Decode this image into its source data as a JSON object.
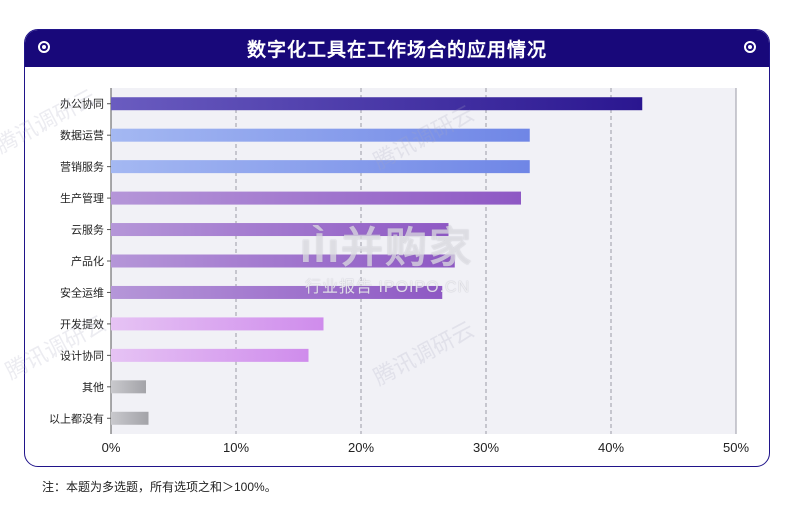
{
  "title": "数字化工具在工作场合的应用情况",
  "footnote": "注：本题为多选题，所有选项之和＞100%。",
  "watermarks": {
    "logo": "ıÌı并购家",
    "sub": "行业报告 IPOIPO.CN",
    "tencent": "腾讯调研云"
  },
  "icons": {
    "left": "radio-dot-icon",
    "right": "radio-dot-icon"
  },
  "colors": {
    "header": "#18087a",
    "plot_bg": "#f1f1f6",
    "gray_bar": "#b7b7bc"
  },
  "chart_data": {
    "type": "bar",
    "orientation": "horizontal",
    "categories": [
      "办公协同",
      "数据运营",
      "营销服务",
      "生产管理",
      "云服务",
      "产品化",
      "安全运维",
      "开发提效",
      "设计协同",
      "其他",
      "以上都没有"
    ],
    "values": [
      42.5,
      33.5,
      33.5,
      32.8,
      27.0,
      27.5,
      26.5,
      17.0,
      15.8,
      2.8,
      3.0
    ],
    "unit": "%",
    "xlim": [
      0,
      50
    ],
    "ticks": [
      "0%",
      "10%",
      "20%",
      "30%",
      "40%",
      "50%"
    ],
    "tick_values": [
      0,
      10,
      20,
      30,
      40,
      50
    ],
    "grid": "vertical dashed",
    "bar_colors": [
      [
        "#6a5cc0",
        "#2a1690"
      ],
      [
        "#a4b8f2",
        "#6f86e6"
      ],
      [
        "#a4b8f2",
        "#6f86e6"
      ],
      [
        "#b596d8",
        "#8e58c4"
      ],
      [
        "#b596d8",
        "#8e58c4"
      ],
      [
        "#b596d8",
        "#8e58c4"
      ],
      [
        "#b596d8",
        "#8e58c4"
      ],
      [
        "#e6c3f4",
        "#cf8cec"
      ],
      [
        "#e6c3f4",
        "#cf8cec"
      ],
      [
        "#c9c9cd",
        "#a3a3a8"
      ],
      [
        "#c9c9cd",
        "#a3a3a8"
      ]
    ]
  }
}
